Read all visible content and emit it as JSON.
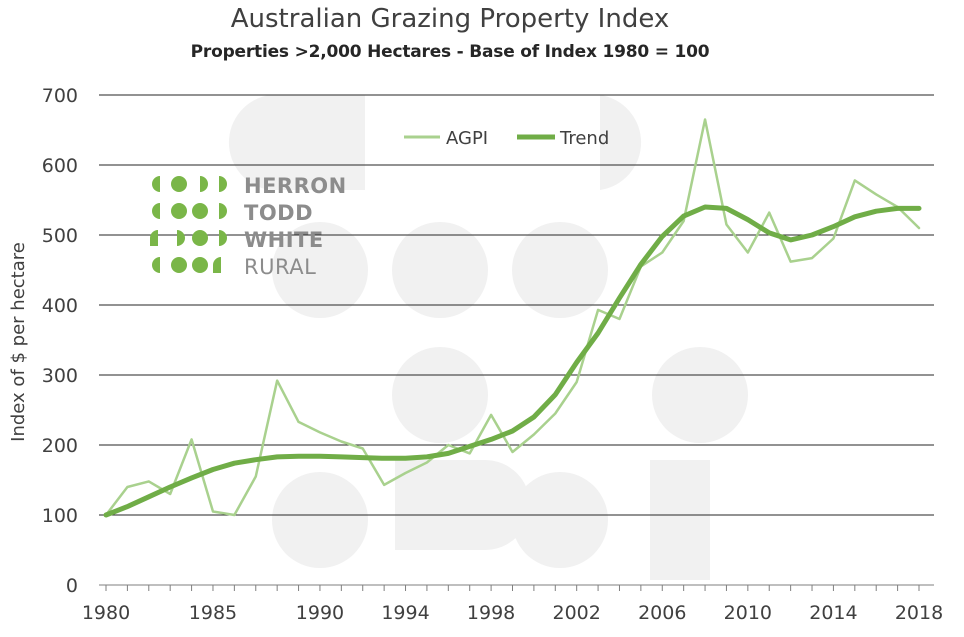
{
  "chart_data": {
    "type": "line",
    "title": "Australian Grazing Property Index",
    "subtitle": "Properties >2,000 Hectares - Base of Index 1980 = 100",
    "ylabel": "Index of $ per hectare",
    "xlabel": "",
    "ylim": [
      0,
      700
    ],
    "xlim": [
      1980,
      2018
    ],
    "y_ticks": [
      0,
      100,
      200,
      300,
      400,
      500,
      600,
      700
    ],
    "x_ticks": [
      1980,
      1985,
      1990,
      1994,
      1998,
      2002,
      2006,
      2010,
      2014,
      2018
    ],
    "grid": "horizontal",
    "legend_position": "top-center",
    "x": [
      1980,
      1981,
      1982,
      1983,
      1984,
      1985,
      1986,
      1987,
      1988,
      1989,
      1990,
      1991,
      1992,
      1993,
      1994,
      1995,
      1996,
      1997,
      1998,
      1999,
      2000,
      2001,
      2002,
      2003,
      2004,
      2005,
      2006,
      2007,
      2008,
      2009,
      2010,
      2011,
      2012,
      2013,
      2014,
      2015,
      2016,
      2017,
      2018
    ],
    "series": [
      {
        "name": "AGPI",
        "color": "#a9d18e",
        "values": [
          100,
          140,
          148,
          130,
          208,
          105,
          100,
          155,
          292,
          233,
          218,
          205,
          195,
          143,
          160,
          175,
          200,
          188,
          243,
          190,
          215,
          245,
          290,
          393,
          380,
          455,
          475,
          520,
          665,
          515,
          475,
          532,
          462,
          467,
          495,
          578,
          558,
          540,
          510
        ]
      },
      {
        "name": "Trend",
        "color": "#70ad47",
        "values": [
          100,
          112,
          126,
          140,
          153,
          165,
          174,
          179,
          183,
          184,
          184,
          183,
          182,
          181,
          181,
          183,
          188,
          198,
          208,
          220,
          240,
          272,
          318,
          360,
          410,
          458,
          498,
          527,
          540,
          538,
          522,
          503,
          493,
          500,
          512,
          526,
          534,
          538,
          538
        ]
      }
    ]
  },
  "logo": {
    "line1": "HERRON",
    "line2": "TODD",
    "line3": "WHITE",
    "line4": "RURAL",
    "color_green": "#7ab648",
    "color_gray": "#8c8c8c"
  }
}
